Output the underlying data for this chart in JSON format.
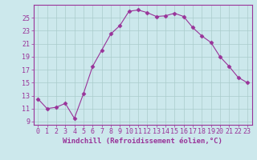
{
  "x": [
    0,
    1,
    2,
    3,
    4,
    5,
    6,
    7,
    8,
    9,
    10,
    11,
    12,
    13,
    14,
    15,
    16,
    17,
    18,
    19,
    20,
    21,
    22,
    23
  ],
  "y": [
    12.5,
    11.0,
    11.2,
    11.8,
    9.5,
    13.3,
    17.5,
    20.0,
    22.5,
    23.8,
    26.0,
    26.2,
    25.8,
    25.2,
    25.3,
    25.7,
    25.2,
    23.5,
    22.2,
    21.2,
    19.0,
    17.5,
    15.8,
    15.0
  ],
  "line_color": "#993399",
  "marker": "D",
  "marker_size": 2.5,
  "bg_color": "#cce8ec",
  "grid_color": "#aacccc",
  "xlabel": "Windchill (Refroidissement éolien,°C)",
  "ylabel": "",
  "xlim": [
    -0.5,
    23.5
  ],
  "ylim": [
    8.5,
    27.0
  ],
  "yticks": [
    9,
    11,
    13,
    15,
    17,
    19,
    21,
    23,
    25
  ],
  "xticks": [
    0,
    1,
    2,
    3,
    4,
    5,
    6,
    7,
    8,
    9,
    10,
    11,
    12,
    13,
    14,
    15,
    16,
    17,
    18,
    19,
    20,
    21,
    22,
    23
  ],
  "xlabel_color": "#993399",
  "tick_color": "#993399",
  "axis_color": "#993399",
  "label_fontsize": 6.5,
  "tick_fontsize": 6.0
}
